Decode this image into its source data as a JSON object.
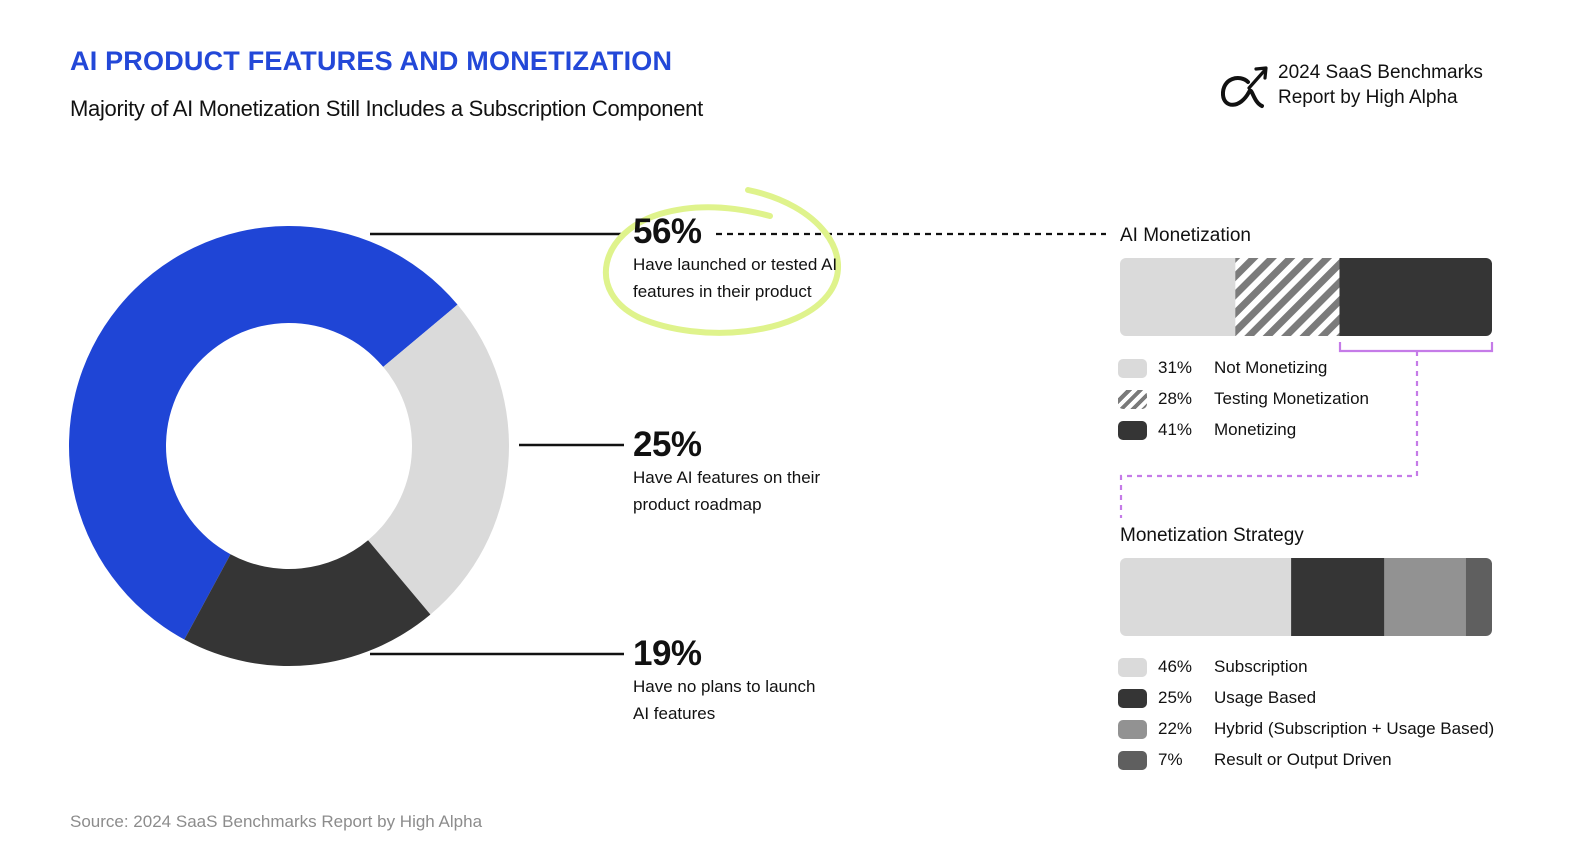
{
  "header": {
    "title": "AI PRODUCT FEATURES AND MONETIZATION",
    "subtitle": "Majority of AI Monetization Still Includes a Subscription Component"
  },
  "brand": {
    "logo_icon": "alpha-arrow-icon",
    "line1": "2024 SaaS Benchmarks",
    "line2": "Report by High Alpha"
  },
  "colors": {
    "accent_blue": "#1f45d6",
    "light_gray": "#dadada",
    "dark": "#353535",
    "mid_gray": "#929292",
    "slate": "#5f5f5f",
    "highlight": "#dff38c",
    "dashed_purple": "#c57be8"
  },
  "chart_data": [
    {
      "type": "pie",
      "title": "AI product features",
      "categories": [
        "Have launched or tested AI features in their product",
        "Have AI features on their product roadmap",
        "Have no plans to launch AI features"
      ],
      "values": [
        56,
        25,
        19
      ],
      "callouts": [
        {
          "pct": "56%",
          "line1": "Have launched or tested AI",
          "line2": "features in their product"
        },
        {
          "pct": "25%",
          "line1": "Have AI features on their",
          "line2": "product roadmap"
        },
        {
          "pct": "19%",
          "line1": "Have no plans to launch",
          "line2": "AI features"
        }
      ]
    },
    {
      "type": "bar",
      "title": "AI Monetization",
      "stacked": true,
      "categories": [
        "Not Monetizing",
        "Testing Monetization",
        "Monetizing"
      ],
      "values": [
        31,
        28,
        41
      ],
      "labels": [
        "31%",
        "28%",
        "41%"
      ]
    },
    {
      "type": "bar",
      "title": "Monetization Strategy",
      "stacked": true,
      "categories": [
        "Subscription",
        "Usage Based",
        "Hybrid (Subscription + Usage Based)",
        "Result or Output Driven"
      ],
      "values": [
        46,
        25,
        22,
        7
      ],
      "labels": [
        "46%",
        "25%",
        "22%",
        "7%"
      ]
    }
  ],
  "footer": {
    "source": "Source: 2024 SaaS Benchmarks Report by High Alpha"
  }
}
